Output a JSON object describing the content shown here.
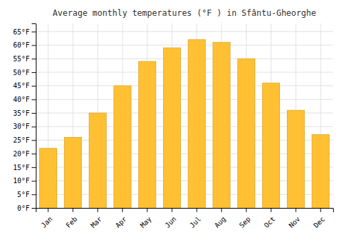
{
  "chart_data": {
    "type": "bar",
    "title": "Average monthly temperatures (°F ) in Sfântu-Gheorghe",
    "categories": [
      "Jan",
      "Feb",
      "Mar",
      "Apr",
      "May",
      "Jun",
      "Jul",
      "Aug",
      "Sep",
      "Oct",
      "Nov",
      "Dec"
    ],
    "values": [
      22,
      26,
      35,
      45,
      54,
      59,
      62,
      61,
      55,
      46,
      36,
      27
    ],
    "color": "#FFC133",
    "ylim": [
      0,
      68
    ],
    "yticks": [
      {
        "value": 0,
        "label": "0°F"
      },
      {
        "value": 5,
        "label": "5°F"
      },
      {
        "value": 10,
        "label": "10°F"
      },
      {
        "value": 15,
        "label": "15°F"
      },
      {
        "value": 20,
        "label": "20°F"
      },
      {
        "value": 25,
        "label": "25°F"
      },
      {
        "value": 30,
        "label": "30°F"
      },
      {
        "value": 35,
        "label": "35°F"
      },
      {
        "value": 40,
        "label": "40°F"
      },
      {
        "value": 45,
        "label": "45°F"
      },
      {
        "value": 50,
        "label": "50°F"
      },
      {
        "value": 55,
        "label": "55°F"
      },
      {
        "value": 60,
        "label": "60°F"
      },
      {
        "value": 65,
        "label": "65°F"
      }
    ],
    "grid": true
  }
}
